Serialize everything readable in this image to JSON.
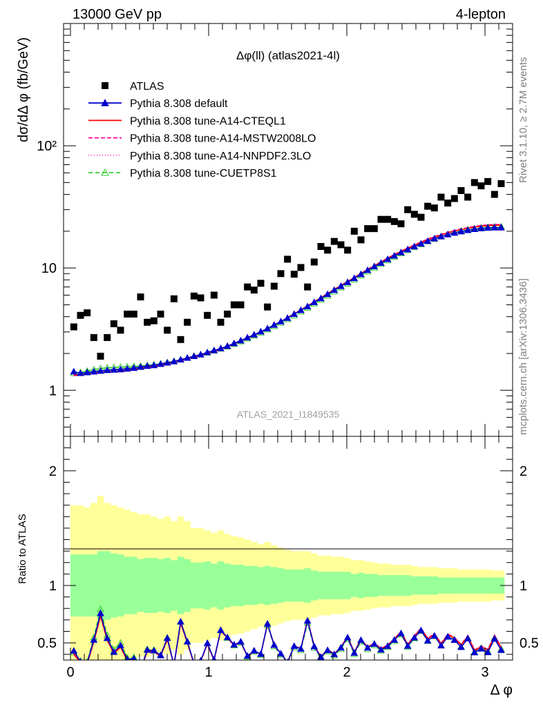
{
  "header": {
    "left": "13000 GeV pp",
    "right": "4-lepton"
  },
  "side_labels": {
    "rivet": "Rivet 3.1.10, ≥ 2.7M events",
    "mcplots": "mcplots.cern.ch [arXiv:1306.3436]"
  },
  "colors": {
    "data": "#000000",
    "default": "#0000cc",
    "cteql1": "#ff0000",
    "mstw": "#ff0099",
    "nnpdf": "#ff33cc",
    "cuetp8s1": "#33cc33",
    "band_inner": "#99ff99",
    "band_outer": "#ffff99"
  },
  "chart_data": [
    {
      "type": "scatter",
      "title": "Δφ(ll) (atlas2021-4l)",
      "ylabel": "dσ/dΔ φ (fb/GeV)",
      "xlabel": "",
      "analysis_label": "ATLAS_2021_I1849535",
      "log_y": true,
      "xlim": [
        -0.05,
        3.2
      ],
      "ylim": [
        0.42,
        1000
      ],
      "y_ticks": [
        "1",
        "10",
        "10²"
      ],
      "legend_position": "top-left",
      "legend": [
        {
          "name": "ATLAS",
          "key": "atlas"
        },
        {
          "name": "Pythia 8.308 default",
          "key": "default"
        },
        {
          "name": "Pythia 8.308 tune-A14-CTEQL1",
          "key": "cteql1"
        },
        {
          "name": "Pythia 8.308 tune-A14-MSTW2008LO",
          "key": "mstw"
        },
        {
          "name": "Pythia 8.308 tune-A14-NNPDF2.3LO",
          "key": "nnpdf"
        },
        {
          "name": "Pythia 8.308 tune-CUETP8S1",
          "key": "cuetp8s1"
        }
      ],
      "atlas_y": [
        3.3,
        4.1,
        4.3,
        2.7,
        1.9,
        2.7,
        3.5,
        3.1,
        4.2,
        4.2,
        5.8,
        3.6,
        3.7,
        4.2,
        3.1,
        5.6,
        2.6,
        3.6,
        5.9,
        5.7,
        4.1,
        6.0,
        3.6,
        4.2,
        5.0,
        5.0,
        7.0,
        6.6,
        7.5,
        4.8,
        7.1,
        9.0,
        11.8,
        8.9,
        10.1,
        7.0,
        11.2,
        15.0,
        14.0,
        16.5,
        15.5,
        14.0,
        20.0,
        17.0,
        21.0,
        21.0,
        25.0,
        25.0,
        24.0,
        23.0,
        30.0,
        27.5,
        26.0,
        32.0,
        31.0,
        38.0,
        34.0,
        37.0,
        43.0,
        38.0,
        50.0,
        47.0,
        51.0,
        40.0,
        49.0
      ],
      "mc_y": {
        "default": [
          1.42,
          1.38,
          1.4,
          1.42,
          1.44,
          1.46,
          1.47,
          1.48,
          1.5,
          1.52,
          1.55,
          1.58,
          1.6,
          1.64,
          1.68,
          1.72,
          1.78,
          1.84,
          1.9,
          1.96,
          2.04,
          2.12,
          2.2,
          2.3,
          2.42,
          2.55,
          2.7,
          2.85,
          3.02,
          3.2,
          3.42,
          3.65,
          3.9,
          4.2,
          4.52,
          4.85,
          5.25,
          5.65,
          6.1,
          6.6,
          7.1,
          7.65,
          8.25,
          8.9,
          9.6,
          10.3,
          11.0,
          11.8,
          12.6,
          13.4,
          14.2,
          15.0,
          15.8,
          16.6,
          17.4,
          18.1,
          18.8,
          19.4,
          19.9,
          20.4,
          20.8,
          21.1,
          21.3,
          21.4,
          21.4
        ],
        "cteql1": [
          1.34,
          1.34,
          1.36,
          1.38,
          1.4,
          1.42,
          1.43,
          1.44,
          1.46,
          1.48,
          1.51,
          1.54,
          1.57,
          1.61,
          1.65,
          1.7,
          1.75,
          1.81,
          1.87,
          1.94,
          2.01,
          2.09,
          2.18,
          2.28,
          2.4,
          2.53,
          2.68,
          2.84,
          3.01,
          3.2,
          3.42,
          3.66,
          3.92,
          4.22,
          4.55,
          4.9,
          5.3,
          5.72,
          6.18,
          6.68,
          7.2,
          7.76,
          8.36,
          9.02,
          9.72,
          10.44,
          11.2,
          12.0,
          12.82,
          13.66,
          14.5,
          15.35,
          16.2,
          17.05,
          17.88,
          18.65,
          19.4,
          20.05,
          20.65,
          21.15,
          21.6,
          21.95,
          22.2,
          22.35,
          22.4
        ],
        "mstw": [
          1.32,
          1.33,
          1.35,
          1.37,
          1.39,
          1.41,
          1.42,
          1.43,
          1.45,
          1.47,
          1.5,
          1.53,
          1.56,
          1.6,
          1.64,
          1.69,
          1.74,
          1.8,
          1.86,
          1.93,
          2.0,
          2.08,
          2.17,
          2.27,
          2.39,
          2.52,
          2.67,
          2.83,
          3.0,
          3.19,
          3.41,
          3.65,
          3.91,
          4.21,
          4.54,
          4.89,
          5.29,
          5.71,
          6.17,
          6.67,
          7.19,
          7.76,
          8.37,
          9.04,
          9.75,
          10.48,
          11.25,
          12.06,
          12.9,
          13.75,
          14.62,
          15.48,
          16.35,
          17.22,
          18.05,
          18.84,
          19.6,
          20.28,
          20.9,
          21.42,
          21.9,
          22.26,
          22.52,
          22.68,
          22.75
        ],
        "nnpdf": [
          1.33,
          1.33,
          1.35,
          1.37,
          1.39,
          1.41,
          1.42,
          1.43,
          1.45,
          1.47,
          1.5,
          1.53,
          1.56,
          1.6,
          1.64,
          1.69,
          1.74,
          1.8,
          1.86,
          1.93,
          2.0,
          2.08,
          2.17,
          2.27,
          2.39,
          2.52,
          2.67,
          2.83,
          3.0,
          3.19,
          3.41,
          3.65,
          3.91,
          4.21,
          4.54,
          4.89,
          5.29,
          5.71,
          6.17,
          6.67,
          7.19,
          7.76,
          8.37,
          9.04,
          9.75,
          10.48,
          11.25,
          12.06,
          12.9,
          13.75,
          14.62,
          15.48,
          16.35,
          17.22,
          18.05,
          18.84,
          19.6,
          20.28,
          20.9,
          21.42,
          21.9,
          22.26,
          22.52,
          22.68,
          22.75
        ],
        "cuetp8s1": [
          1.38,
          1.4,
          1.44,
          1.48,
          1.51,
          1.53,
          1.54,
          1.55,
          1.56,
          1.57,
          1.58,
          1.6,
          1.62,
          1.65,
          1.69,
          1.73,
          1.78,
          1.84,
          1.9,
          1.96,
          2.03,
          2.11,
          2.19,
          2.28,
          2.39,
          2.51,
          2.65,
          2.8,
          2.96,
          3.14,
          3.34,
          3.56,
          3.81,
          4.09,
          4.4,
          4.73,
          5.11,
          5.5,
          5.94,
          6.42,
          6.92,
          7.46,
          8.05,
          8.68,
          9.36,
          10.06,
          10.78,
          11.56,
          12.36,
          13.18,
          14.0,
          14.84,
          15.68,
          16.52,
          17.34,
          18.12,
          18.86,
          19.52,
          20.12,
          20.64,
          21.08,
          21.42,
          21.66,
          21.8,
          21.85
        ]
      }
    },
    {
      "type": "line",
      "ylabel": "Ratio to ATLAS",
      "xlabel": "Δ φ",
      "xlim": [
        -0.05,
        3.2
      ],
      "ylim": [
        0.35,
        2.3
      ],
      "x_ticks": [
        "0",
        "1",
        "2",
        "3"
      ],
      "y_ticks": [
        "0.5",
        "1",
        "2"
      ],
      "band_inner_halfwidth": [
        0.27,
        0.27,
        0.27,
        0.27,
        0.3,
        0.3,
        0.28,
        0.27,
        0.25,
        0.25,
        0.23,
        0.24,
        0.24,
        0.23,
        0.24,
        0.22,
        0.25,
        0.23,
        0.2,
        0.2,
        0.21,
        0.19,
        0.21,
        0.19,
        0.18,
        0.18,
        0.17,
        0.17,
        0.16,
        0.17,
        0.16,
        0.15,
        0.14,
        0.14,
        0.14,
        0.15,
        0.13,
        0.12,
        0.12,
        0.12,
        0.12,
        0.12,
        0.1,
        0.11,
        0.1,
        0.1,
        0.09,
        0.09,
        0.09,
        0.09,
        0.09,
        0.08,
        0.08,
        0.08,
        0.08,
        0.07,
        0.07,
        0.07,
        0.07,
        0.07,
        0.07,
        0.07,
        0.07,
        0.07,
        0.07
      ],
      "band_outer_halfwidth": [
        0.7,
        0.7,
        0.68,
        0.72,
        0.78,
        0.72,
        0.7,
        0.68,
        0.66,
        0.64,
        0.62,
        0.62,
        0.6,
        0.58,
        0.6,
        0.56,
        0.6,
        0.56,
        0.5,
        0.5,
        0.48,
        0.46,
        0.48,
        0.45,
        0.43,
        0.42,
        0.4,
        0.38,
        0.36,
        0.38,
        0.35,
        0.33,
        0.31,
        0.3,
        0.3,
        0.3,
        0.28,
        0.26,
        0.26,
        0.25,
        0.25,
        0.24,
        0.22,
        0.22,
        0.21,
        0.2,
        0.19,
        0.19,
        0.18,
        0.18,
        0.18,
        0.17,
        0.16,
        0.16,
        0.16,
        0.15,
        0.15,
        0.15,
        0.14,
        0.14,
        0.14,
        0.14,
        0.14,
        0.13,
        0.13
      ]
    }
  ]
}
